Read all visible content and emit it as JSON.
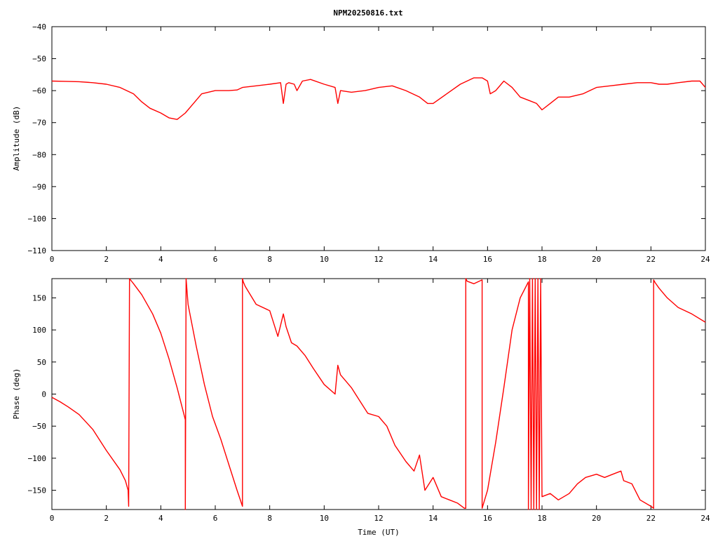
{
  "chart_data": [
    {
      "type": "line",
      "title": "NPM20250816.txt",
      "xlabel": "",
      "ylabel": "Amplitude (dB)",
      "xlim": [
        0,
        24
      ],
      "ylim": [
        -110,
        -40
      ],
      "xticks": [
        "0",
        "2",
        "4",
        "6",
        "8",
        "10",
        "12",
        "14",
        "16",
        "18",
        "20",
        "22",
        "24"
      ],
      "yticks": [
        "−40",
        "−50",
        "−60",
        "−70",
        "−80",
        "−90",
        "−100",
        "−110"
      ],
      "grid": false,
      "color": "#ff0000",
      "series": [
        {
          "x": [
            0,
            0.5,
            1.0,
            1.5,
            2.0,
            2.5,
            3.0,
            3.3,
            3.6,
            4.0,
            4.3,
            4.6,
            4.9,
            5.2,
            5.5,
            6.0,
            6.5,
            6.8,
            7.0,
            7.5,
            8.0,
            8.4,
            8.5,
            8.6,
            8.7,
            8.9,
            9.0,
            9.2,
            9.5,
            10.0,
            10.4,
            10.5,
            10.6,
            11.0,
            11.5,
            12.0,
            12.5,
            13.0,
            13.5,
            13.8,
            14.0,
            14.5,
            15.0,
            15.5,
            15.8,
            16.0,
            16.1,
            16.3,
            16.6,
            16.9,
            17.2,
            17.5,
            17.8,
            18.0,
            18.3,
            18.6,
            19.0,
            19.5,
            20.0,
            20.5,
            21.0,
            21.5,
            22.0,
            22.3,
            22.6,
            23.0,
            23.5,
            23.8,
            24.0
          ],
          "y": [
            -57,
            -57.1,
            -57.2,
            -57.5,
            -58,
            -59,
            -61,
            -63.5,
            -65.5,
            -67,
            -68.5,
            -69,
            -67,
            -64,
            -61,
            -60,
            -60,
            -59.8,
            -59,
            -58.5,
            -58,
            -57.5,
            -64,
            -58,
            -57.5,
            -58,
            -60,
            -57,
            -56.5,
            -58,
            -59,
            -64,
            -60,
            -60.5,
            -60,
            -59,
            -58.5,
            -60,
            -62,
            -64,
            -64,
            -61,
            -58,
            -56,
            -56,
            -57,
            -61,
            -60,
            -57,
            -59,
            -62,
            -63,
            -64,
            -66,
            -64,
            -62,
            -62,
            -61,
            -59,
            -58.5,
            -58,
            -57.5,
            -57.5,
            -58,
            -58,
            -57.5,
            -57,
            -57,
            -59
          ]
        }
      ]
    },
    {
      "type": "line",
      "title": "",
      "xlabel": "Time (UT)",
      "ylabel": "Phase (deg)",
      "xlim": [
        0,
        24
      ],
      "ylim": [
        -180,
        180
      ],
      "xticks": [
        "0",
        "2",
        "4",
        "6",
        "8",
        "10",
        "12",
        "14",
        "16",
        "18",
        "20",
        "22",
        "24"
      ],
      "yticks": [
        "150",
        "100",
        "50",
        "0",
        "−50",
        "−100",
        "−150"
      ],
      "grid": false,
      "color": "#ff0000",
      "series": [
        {
          "x": [
            0,
            0.3,
            0.6,
            1.0,
            1.5,
            2.0,
            2.5,
            2.7,
            2.8,
            2.82,
            2.85,
            3.0,
            3.3,
            3.7,
            4.0,
            4.3,
            4.6,
            4.9,
            4.9,
            4.93,
            5.0,
            5.3,
            5.6,
            5.9,
            6.2,
            6.5,
            6.8,
            7.0,
            7.0,
            7.03,
            7.1,
            7.5,
            8.0,
            8.3,
            8.5,
            8.6,
            8.8,
            9.0,
            9.3,
            9.6,
            10.0,
            10.4,
            10.5,
            10.6,
            10.8,
            11.0,
            11.3,
            11.6,
            12.0,
            12.3,
            12.6,
            13.0,
            13.3,
            13.5,
            13.7,
            14.0,
            14.3,
            14.6,
            14.9,
            15.15,
            15.2,
            15.2,
            15.25,
            15.5,
            15.8,
            15.8,
            16.0,
            16.3,
            16.6,
            16.9,
            17.2,
            17.5,
            17.5,
            17.55,
            17.6,
            17.65,
            17.7,
            17.75,
            17.8,
            17.85,
            17.9,
            17.95,
            18.0,
            18.3,
            18.6,
            19.0,
            19.3,
            19.6,
            20.0,
            20.3,
            20.6,
            20.9,
            21.0,
            21.3,
            21.6,
            22.0,
            22.1,
            22.1,
            22.15,
            22.3,
            22.6,
            23.0,
            23.5,
            24.0
          ],
          "y": [
            -5,
            -12,
            -20,
            -32,
            -55,
            -88,
            -118,
            -135,
            -150,
            -175,
            180,
            172,
            155,
            125,
            95,
            55,
            10,
            -40,
            -180,
            180,
            140,
            75,
            15,
            -35,
            -70,
            -110,
            -150,
            -175,
            180,
            175,
            168,
            140,
            130,
            90,
            125,
            105,
            80,
            75,
            60,
            40,
            15,
            0,
            45,
            30,
            20,
            10,
            -10,
            -30,
            -35,
            -50,
            -80,
            -105,
            -120,
            -95,
            -150,
            -130,
            -160,
            -165,
            -170,
            -178,
            -178,
            180,
            176,
            172,
            178,
            -178,
            -150,
            -75,
            10,
            100,
            150,
            175,
            -180,
            180,
            -180,
            180,
            -180,
            180,
            -180,
            180,
            -180,
            180,
            -160,
            -155,
            -165,
            -155,
            -140,
            -130,
            -125,
            -130,
            -125,
            -120,
            -135,
            -140,
            -165,
            -175,
            -178,
            178,
            174,
            165,
            150,
            135,
            125,
            112
          ]
        }
      ]
    }
  ]
}
